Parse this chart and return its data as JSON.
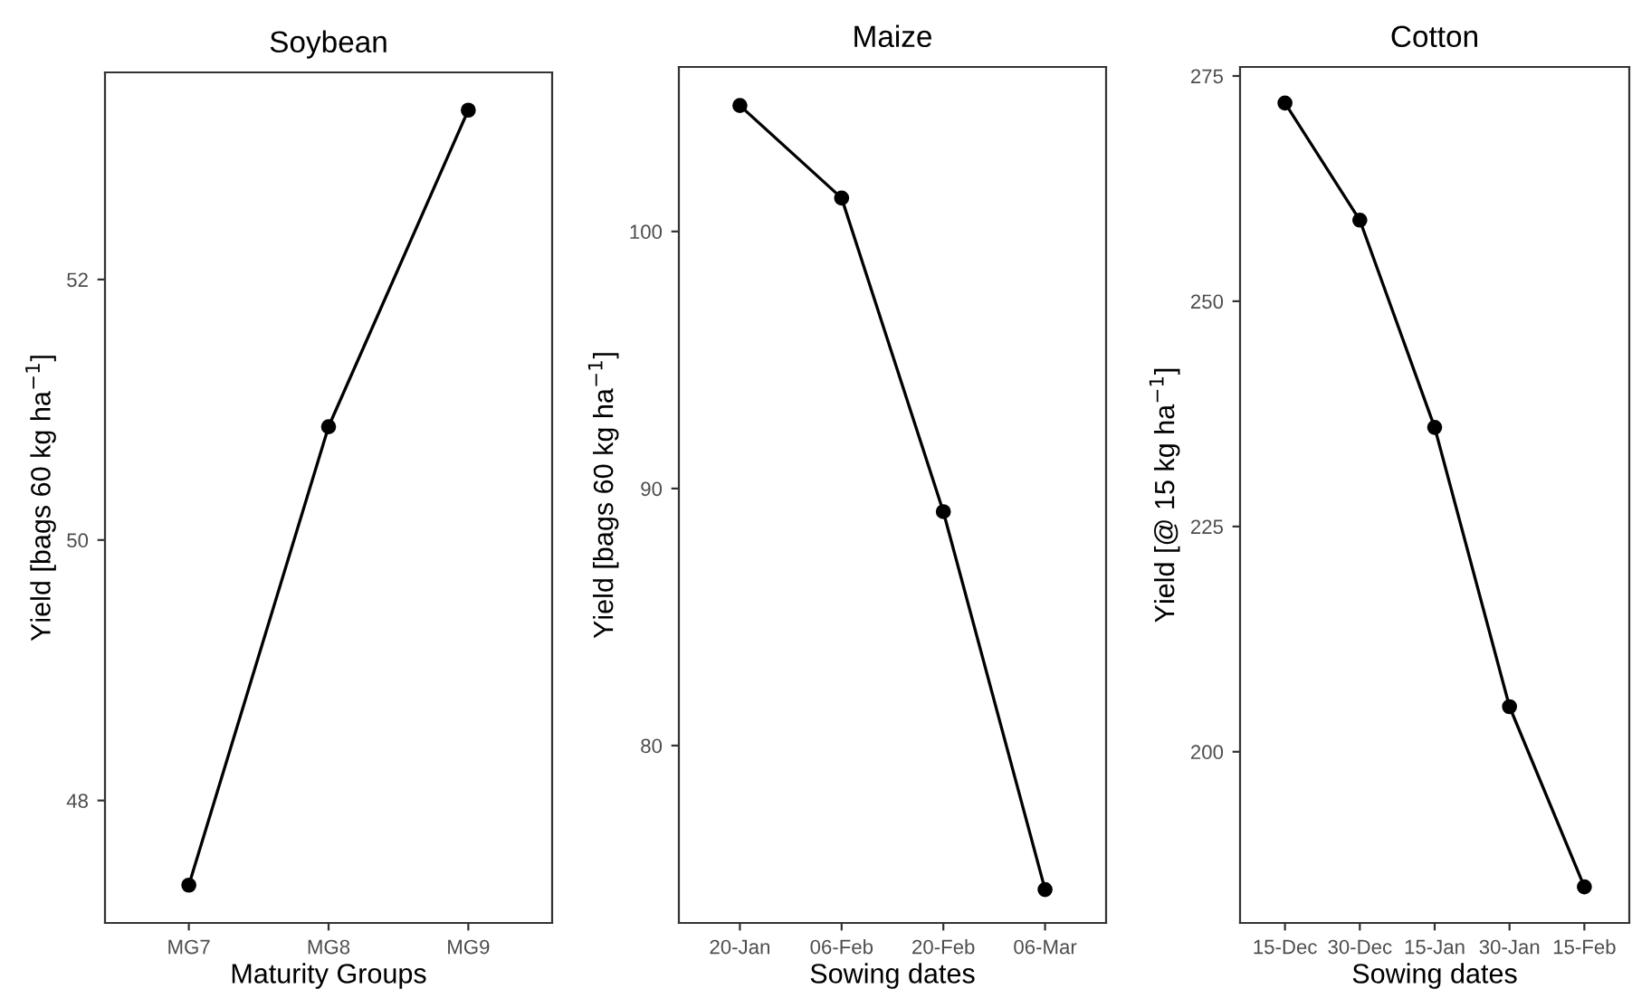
{
  "chart_data": [
    {
      "type": "line",
      "title": "Soybean",
      "xlabel": "Maturity Groups",
      "ylabel": "Yield [bags 60 kg ha$^{−1}$]",
      "categories": [
        "MG7",
        "MG8",
        "MG9"
      ],
      "series": [
        {
          "color": "#000000",
          "values": [
            47.35,
            50.87,
            53.3
          ]
        }
      ],
      "ylim": [
        47.06,
        53.59
      ],
      "yticks": [
        48,
        50,
        52
      ],
      "marker": "circle",
      "line_style": "solid",
      "grid": false
    },
    {
      "type": "line",
      "title": "Maize",
      "xlabel": "Sowing dates",
      "ylabel": "Yield [bags 60 kg ha$^{−1}$]",
      "categories": [
        "20-Jan",
        "06-Feb",
        "20-Feb",
        "06-Mar"
      ],
      "series": [
        {
          "color": "#000000",
          "values": [
            104.9,
            101.3,
            89.1,
            74.4
          ]
        }
      ],
      "ylim": [
        73.1,
        106.4
      ],
      "yticks": [
        80,
        90,
        100
      ],
      "marker": "circle",
      "line_style": "solid",
      "grid": false
    },
    {
      "type": "line",
      "title": "Cotton",
      "xlabel": "Sowing dates",
      "ylabel": "Yield [@ 15 kg ha$^{−1}$]",
      "categories": [
        "15-Dec",
        "30-Dec",
        "15-Jan",
        "30-Jan",
        "15-Feb"
      ],
      "series": [
        {
          "color": "#000000",
          "values": [
            272,
            259,
            236,
            205,
            185
          ]
        }
      ],
      "ylim": [
        181,
        276
      ],
      "yticks": [
        200,
        225,
        250,
        275
      ],
      "marker": "circle",
      "line_style": "solid",
      "grid": false
    }
  ]
}
